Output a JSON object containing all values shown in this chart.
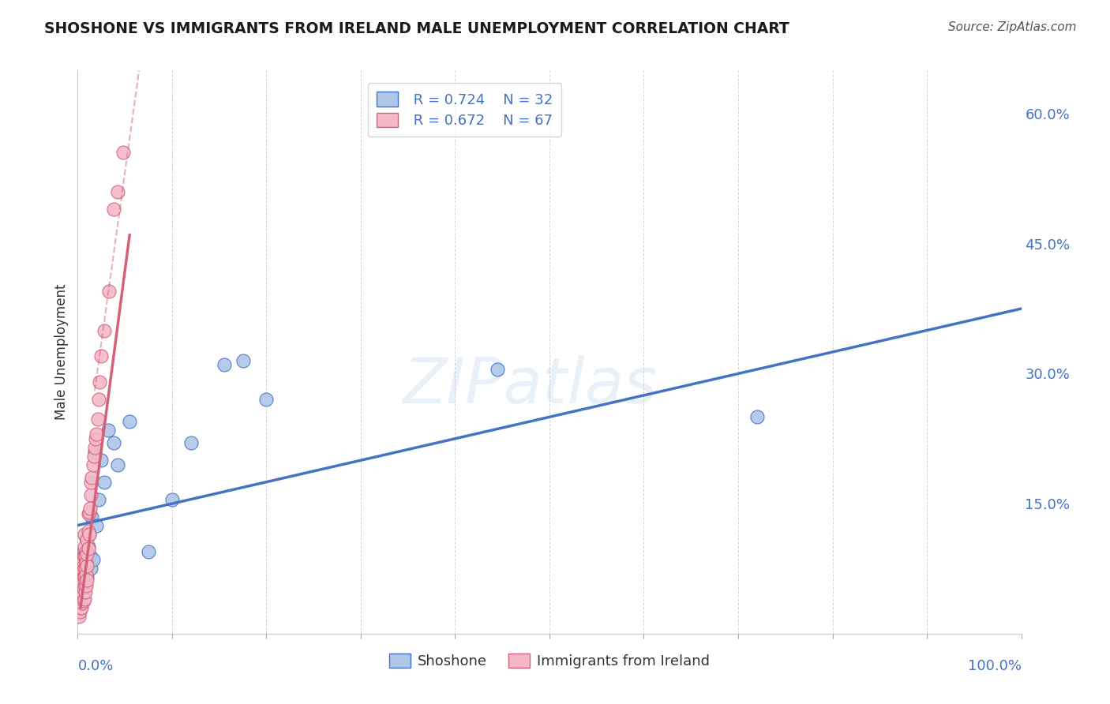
{
  "title": "SHOSHONE VS IMMIGRANTS FROM IRELAND MALE UNEMPLOYMENT CORRELATION CHART",
  "source": "Source: ZipAtlas.com",
  "ylabel": "Male Unemployment",
  "xlim": [
    0.0,
    1.0
  ],
  "ylim": [
    0.0,
    0.65
  ],
  "ytick_positions": [
    0.15,
    0.3,
    0.45,
    0.6
  ],
  "ytick_labels": [
    "15.0%",
    "30.0%",
    "45.0%",
    "60.0%"
  ],
  "xtick_positions": [
    0.0,
    0.1,
    0.2,
    0.3,
    0.4,
    0.5,
    0.6,
    0.7,
    0.8,
    0.9,
    1.0
  ],
  "shoshone_color": "#aec6e8",
  "shoshone_edge_color": "#4472c4",
  "ireland_color": "#f4b8c8",
  "ireland_edge_color": "#d4607a",
  "shoshone_line_color": "#4472c4",
  "ireland_line_color": "#d4607a",
  "legend_r1": "R = 0.724",
  "legend_n1": "N = 32",
  "legend_r2": "R = 0.672",
  "legend_n2": "N = 67",
  "legend_label1": "Shoshone",
  "legend_label2": "Immigrants from Ireland",
  "watermark": "ZIPatlas",
  "background_color": "#ffffff",
  "grid_color": "#cccccc",
  "title_color": "#1a1a1a",
  "source_color": "#555555",
  "axis_label_color": "#4472c4",
  "ylabel_color": "#333333",
  "blue_line_x0": 0.0,
  "blue_line_y0": 0.125,
  "blue_line_x1": 1.0,
  "blue_line_y1": 0.375,
  "pink_line_solid_x0": 0.003,
  "pink_line_solid_y0": 0.03,
  "pink_line_solid_x1": 0.055,
  "pink_line_solid_y1": 0.46,
  "pink_line_dash_x0": 0.018,
  "pink_line_dash_y0": 0.28,
  "pink_line_dash_x1": 0.065,
  "pink_line_dash_y1": 0.65,
  "shoshone_x": [
    0.004,
    0.005,
    0.006,
    0.007,
    0.007,
    0.008,
    0.009,
    0.01,
    0.01,
    0.011,
    0.012,
    0.013,
    0.014,
    0.015,
    0.016,
    0.018,
    0.02,
    0.022,
    0.025,
    0.028,
    0.032,
    0.038,
    0.042,
    0.055,
    0.075,
    0.1,
    0.12,
    0.155,
    0.175,
    0.2,
    0.445,
    0.72
  ],
  "shoshone_y": [
    0.08,
    0.06,
    0.095,
    0.075,
    0.09,
    0.07,
    0.11,
    0.065,
    0.085,
    0.1,
    0.115,
    0.09,
    0.075,
    0.135,
    0.085,
    0.21,
    0.125,
    0.155,
    0.2,
    0.175,
    0.235,
    0.22,
    0.195,
    0.245,
    0.095,
    0.155,
    0.22,
    0.31,
    0.315,
    0.27,
    0.305,
    0.25
  ],
  "ireland_x": [
    0.001,
    0.001,
    0.001,
    0.002,
    0.002,
    0.002,
    0.002,
    0.003,
    0.003,
    0.003,
    0.003,
    0.004,
    0.004,
    0.004,
    0.004,
    0.005,
    0.005,
    0.005,
    0.005,
    0.005,
    0.006,
    0.006,
    0.006,
    0.006,
    0.006,
    0.007,
    0.007,
    0.007,
    0.007,
    0.007,
    0.007,
    0.007,
    0.008,
    0.008,
    0.008,
    0.008,
    0.009,
    0.009,
    0.009,
    0.009,
    0.01,
    0.01,
    0.01,
    0.01,
    0.011,
    0.011,
    0.011,
    0.012,
    0.012,
    0.013,
    0.014,
    0.014,
    0.015,
    0.016,
    0.017,
    0.018,
    0.019,
    0.02,
    0.021,
    0.022,
    0.023,
    0.025,
    0.028,
    0.033,
    0.038,
    0.042,
    0.048
  ],
  "ireland_y": [
    0.02,
    0.035,
    0.05,
    0.025,
    0.04,
    0.055,
    0.065,
    0.03,
    0.045,
    0.06,
    0.07,
    0.03,
    0.045,
    0.06,
    0.07,
    0.035,
    0.048,
    0.06,
    0.075,
    0.085,
    0.038,
    0.052,
    0.065,
    0.078,
    0.09,
    0.04,
    0.055,
    0.065,
    0.075,
    0.09,
    0.1,
    0.115,
    0.048,
    0.06,
    0.075,
    0.09,
    0.055,
    0.068,
    0.082,
    0.095,
    0.062,
    0.078,
    0.092,
    0.108,
    0.098,
    0.118,
    0.138,
    0.115,
    0.14,
    0.145,
    0.16,
    0.175,
    0.18,
    0.195,
    0.205,
    0.215,
    0.225,
    0.23,
    0.248,
    0.27,
    0.29,
    0.32,
    0.35,
    0.395,
    0.49,
    0.51,
    0.555
  ]
}
